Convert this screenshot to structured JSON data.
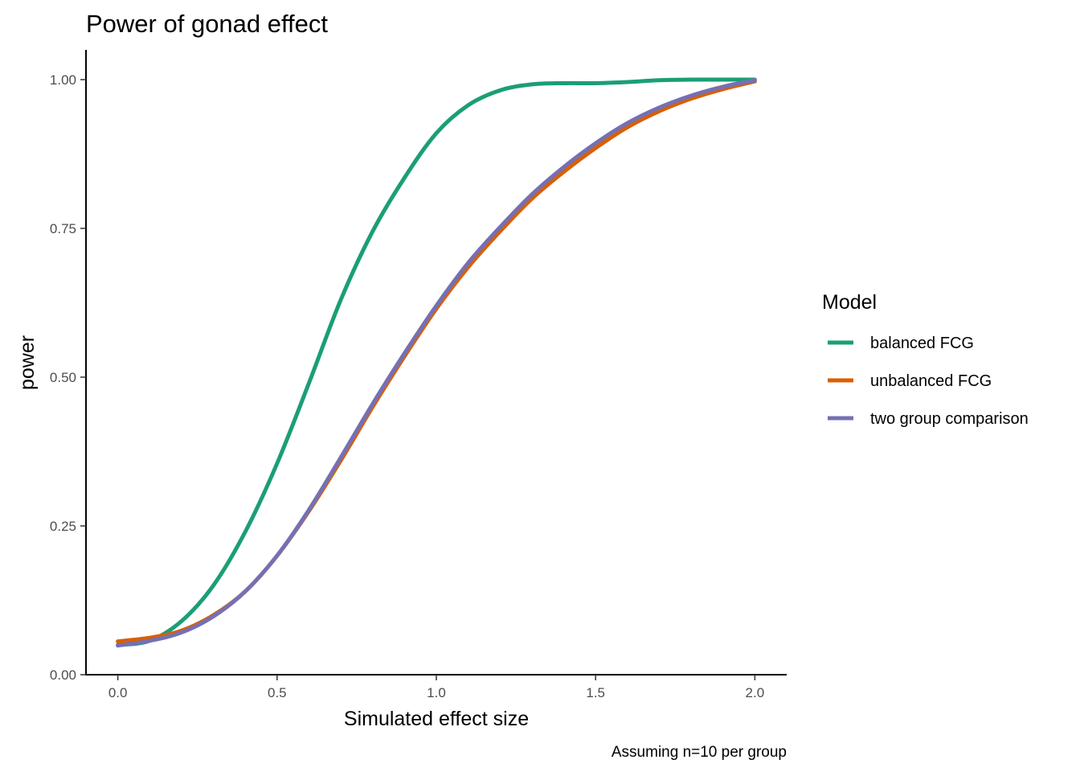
{
  "chart_data": {
    "type": "line",
    "title": "Power of gonad effect",
    "subtitle": "",
    "xlabel": "Simulated effect size",
    "ylabel": "power",
    "caption": "Assuming n=10 per group",
    "xlim": [
      -0.1,
      2.1
    ],
    "ylim": [
      0,
      1.05
    ],
    "x_ticks": [
      0,
      0.5,
      1,
      1.5,
      2
    ],
    "x_tick_labels": [
      "0.0",
      "0.5",
      "1.0",
      "1.5",
      "2.0"
    ],
    "y_ticks": [
      0,
      0.25,
      0.5,
      0.75,
      1
    ],
    "y_tick_labels": [
      "0.00",
      "0.25",
      "0.50",
      "0.75",
      "1.00"
    ],
    "grid": false,
    "legend": {
      "title": "Model",
      "position": "right"
    },
    "series": [
      {
        "name": "balanced FCG",
        "color": "#1b9e77",
        "x": [
          0,
          0.1,
          0.2,
          0.3,
          0.4,
          0.5,
          0.6,
          0.7,
          0.8,
          0.9,
          1.0,
          1.1,
          1.2,
          1.3,
          1.4,
          1.5,
          1.6,
          1.7,
          1.8,
          1.9,
          2.0
        ],
        "y": [
          0.05,
          0.057,
          0.09,
          0.15,
          0.24,
          0.355,
          0.49,
          0.63,
          0.745,
          0.835,
          0.91,
          0.957,
          0.982,
          0.992,
          0.994,
          0.994,
          0.996,
          0.999,
          1.0,
          1.0,
          1.0
        ]
      },
      {
        "name": "unbalanced FCG",
        "color": "#d95f02",
        "x": [
          0,
          0.1,
          0.2,
          0.3,
          0.4,
          0.5,
          0.6,
          0.7,
          0.8,
          0.9,
          1.0,
          1.1,
          1.2,
          1.3,
          1.4,
          1.5,
          1.6,
          1.7,
          1.8,
          1.9,
          2.0
        ],
        "y": [
          0.056,
          0.062,
          0.074,
          0.1,
          0.14,
          0.2,
          0.275,
          0.36,
          0.45,
          0.535,
          0.615,
          0.685,
          0.745,
          0.8,
          0.845,
          0.885,
          0.92,
          0.947,
          0.968,
          0.984,
          0.997
        ]
      },
      {
        "name": "two group comparison",
        "color": "#7570b3",
        "x": [
          0,
          0.1,
          0.2,
          0.3,
          0.4,
          0.5,
          0.6,
          0.7,
          0.8,
          0.9,
          1.0,
          1.1,
          1.2,
          1.3,
          1.4,
          1.5,
          1.6,
          1.7,
          1.8,
          1.9,
          2.0
        ],
        "y": [
          0.049,
          0.057,
          0.071,
          0.098,
          0.14,
          0.2,
          0.277,
          0.365,
          0.455,
          0.54,
          0.62,
          0.692,
          0.752,
          0.807,
          0.853,
          0.893,
          0.927,
          0.953,
          0.973,
          0.988,
          0.999
        ]
      }
    ]
  }
}
